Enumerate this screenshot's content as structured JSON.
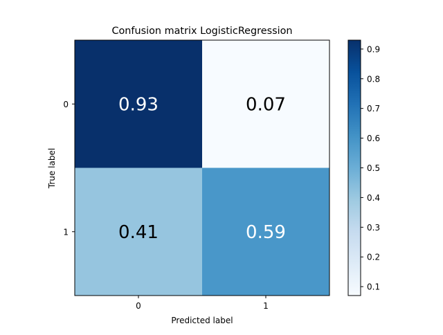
{
  "chart_data": {
    "type": "heatmap",
    "title": "Confusion matrix LogisticRegression",
    "xlabel": "Predicted label",
    "ylabel": "True label",
    "x_categories": [
      "0",
      "1"
    ],
    "y_categories": [
      "0",
      "1"
    ],
    "values": [
      [
        0.93,
        0.07
      ],
      [
        0.41,
        0.59
      ]
    ],
    "cell_labels": [
      [
        "0.93",
        "0.07"
      ],
      [
        "0.41",
        "0.59"
      ]
    ],
    "colormap": "Blues",
    "colorbar": {
      "range": [
        0.07,
        0.93
      ],
      "ticks": [
        0.1,
        0.2,
        0.3,
        0.4,
        0.5,
        0.6,
        0.7,
        0.8,
        0.9
      ],
      "tick_labels": [
        "0.1",
        "0.2",
        "0.3",
        "0.4",
        "0.5",
        "0.6",
        "0.7",
        "0.8",
        "0.9"
      ]
    },
    "text_colors": {
      "light": "#ffffff",
      "dark": "#000000"
    },
    "grid": false
  }
}
